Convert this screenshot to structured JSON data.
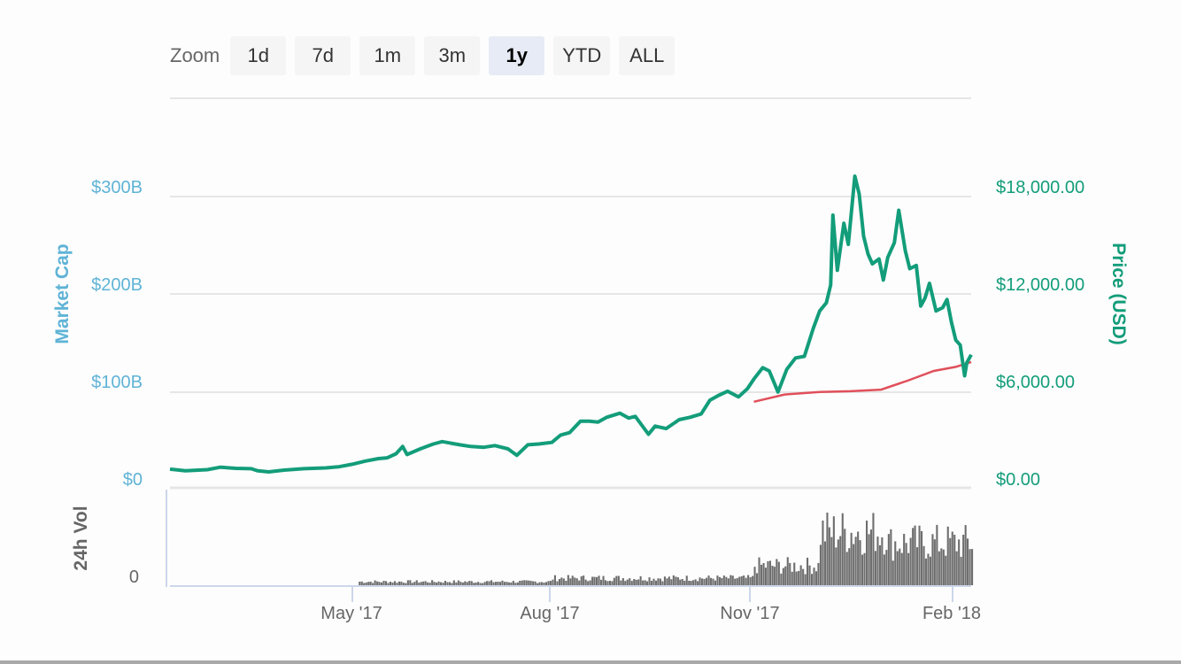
{
  "zoom": {
    "label": "Zoom",
    "buttons": [
      {
        "label": "1d",
        "active": false
      },
      {
        "label": "7d",
        "active": false
      },
      {
        "label": "1m",
        "active": false
      },
      {
        "label": "3m",
        "active": false
      },
      {
        "label": "1y",
        "active": true
      },
      {
        "label": "YTD",
        "active": false
      },
      {
        "label": "ALL",
        "active": false
      }
    ]
  },
  "colors": {
    "price": "#139d7a",
    "market_cap_axis": "#5fb3d6",
    "moving_average": "#e0505a",
    "volume": "#6e6e6e",
    "grid": "#e6e6e6",
    "axis_line": "#ccd6eb"
  },
  "chart_data": {
    "type": "line",
    "title": "",
    "xlabel": "",
    "ylabel_left": "Market Cap",
    "ylabel_right": "Price (USD)",
    "ylabel_volume": "24h Vol",
    "left_axis_ticks": [
      "$0",
      "$100B",
      "$200B",
      "$300B"
    ],
    "right_axis_ticks": [
      "$0.00",
      "$6,000.00",
      "$12,000.00",
      "$18,000.00"
    ],
    "volume_axis_ticks": [
      "0"
    ],
    "x_ticks": [
      "May '17",
      "Aug '17",
      "Nov '17",
      "Feb '18"
    ],
    "ylim_price": [
      0,
      24000
    ],
    "ylim_market_cap": [
      0,
      400
    ],
    "grid": true,
    "legend": null,
    "x_range": [
      "2017-02-08",
      "2018-02-08"
    ],
    "series": [
      {
        "name": "Price (USD)",
        "axis": "right",
        "points": [
          [
            "2017-02-08",
            1150
          ],
          [
            "2017-02-15",
            1050
          ],
          [
            "2017-02-25",
            1120
          ],
          [
            "2017-03-03",
            1270
          ],
          [
            "2017-03-10",
            1200
          ],
          [
            "2017-03-17",
            1180
          ],
          [
            "2017-03-20",
            1050
          ],
          [
            "2017-03-25",
            980
          ],
          [
            "2017-04-01",
            1090
          ],
          [
            "2017-04-10",
            1180
          ],
          [
            "2017-04-20",
            1230
          ],
          [
            "2017-04-26",
            1300
          ],
          [
            "2017-05-02",
            1450
          ],
          [
            "2017-05-08",
            1650
          ],
          [
            "2017-05-14",
            1800
          ],
          [
            "2017-05-18",
            1850
          ],
          [
            "2017-05-22",
            2100
          ],
          [
            "2017-05-25",
            2550
          ],
          [
            "2017-05-27",
            2050
          ],
          [
            "2017-06-02",
            2400
          ],
          [
            "2017-06-08",
            2700
          ],
          [
            "2017-06-12",
            2850
          ],
          [
            "2017-06-16",
            2750
          ],
          [
            "2017-06-20",
            2650
          ],
          [
            "2017-06-25",
            2550
          ],
          [
            "2017-07-01",
            2500
          ],
          [
            "2017-07-06",
            2600
          ],
          [
            "2017-07-12",
            2400
          ],
          [
            "2017-07-16",
            2000
          ],
          [
            "2017-07-21",
            2650
          ],
          [
            "2017-07-26",
            2700
          ],
          [
            "2017-08-01",
            2800
          ],
          [
            "2017-08-05",
            3250
          ],
          [
            "2017-08-09",
            3400
          ],
          [
            "2017-08-14",
            4100
          ],
          [
            "2017-08-18",
            4100
          ],
          [
            "2017-08-22",
            4050
          ],
          [
            "2017-08-26",
            4350
          ],
          [
            "2017-09-01",
            4600
          ],
          [
            "2017-09-05",
            4300
          ],
          [
            "2017-09-08",
            4400
          ],
          [
            "2017-09-14",
            3300
          ],
          [
            "2017-09-17",
            3800
          ],
          [
            "2017-09-22",
            3650
          ],
          [
            "2017-09-28",
            4200
          ],
          [
            "2017-10-03",
            4350
          ],
          [
            "2017-10-08",
            4550
          ],
          [
            "2017-10-12",
            5400
          ],
          [
            "2017-10-16",
            5700
          ],
          [
            "2017-10-20",
            5950
          ],
          [
            "2017-10-25",
            5600
          ],
          [
            "2017-10-29",
            6100
          ],
          [
            "2017-11-01",
            6700
          ],
          [
            "2017-11-05",
            7400
          ],
          [
            "2017-11-08",
            7200
          ],
          [
            "2017-11-12",
            5900
          ],
          [
            "2017-11-16",
            7300
          ],
          [
            "2017-11-20",
            8000
          ],
          [
            "2017-11-24",
            8100
          ],
          [
            "2017-11-28",
            9800
          ],
          [
            "2017-12-01",
            10900
          ],
          [
            "2017-12-04",
            11400
          ],
          [
            "2017-12-06",
            12500
          ],
          [
            "2017-12-07",
            16800
          ],
          [
            "2017-12-09",
            13400
          ],
          [
            "2017-12-12",
            16300
          ],
          [
            "2017-12-14",
            15000
          ],
          [
            "2017-12-17",
            19200
          ],
          [
            "2017-12-19",
            18100
          ],
          [
            "2017-12-21",
            15500
          ],
          [
            "2017-12-23",
            14400
          ],
          [
            "2017-12-25",
            13800
          ],
          [
            "2017-12-28",
            14100
          ],
          [
            "2017-12-30",
            12800
          ],
          [
            "2018-01-01",
            14200
          ],
          [
            "2018-01-04",
            15100
          ],
          [
            "2018-01-06",
            17100
          ],
          [
            "2018-01-09",
            14600
          ],
          [
            "2018-01-11",
            13500
          ],
          [
            "2018-01-14",
            13700
          ],
          [
            "2018-01-16",
            11200
          ],
          [
            "2018-01-18",
            11700
          ],
          [
            "2018-01-20",
            12600
          ],
          [
            "2018-01-23",
            10900
          ],
          [
            "2018-01-26",
            11100
          ],
          [
            "2018-01-28",
            11600
          ],
          [
            "2018-01-30",
            10200
          ],
          [
            "2018-02-01",
            9100
          ],
          [
            "2018-02-03",
            8800
          ],
          [
            "2018-02-05",
            6900
          ],
          [
            "2018-02-06",
            7700
          ],
          [
            "2018-02-08",
            8200
          ]
        ]
      },
      {
        "name": "Moving Average",
        "axis": "right",
        "points": [
          [
            "2017-11-01",
            5300
          ],
          [
            "2017-11-15",
            5750
          ],
          [
            "2017-12-01",
            5900
          ],
          [
            "2017-12-15",
            5950
          ],
          [
            "2017-12-29",
            6050
          ],
          [
            "2018-01-10",
            6600
          ],
          [
            "2018-01-22",
            7200
          ],
          [
            "2018-02-01",
            7450
          ],
          [
            "2018-02-08",
            7750
          ]
        ]
      },
      {
        "name": "24h Vol",
        "axis": "volume",
        "type": "bar",
        "note": "relative heights 0-100, daily bars",
        "segments": [
          {
            "from": "2017-05-05",
            "to": "2017-07-31",
            "level": 4
          },
          {
            "from": "2017-08-01",
            "to": "2017-10-31",
            "level": 8
          },
          {
            "from": "2017-11-01",
            "to": "2017-11-30",
            "level": 22
          },
          {
            "from": "2017-12-01",
            "to": "2017-12-31",
            "level": 60
          },
          {
            "from": "2018-01-01",
            "to": "2018-02-08",
            "level": 48
          }
        ]
      }
    ]
  }
}
